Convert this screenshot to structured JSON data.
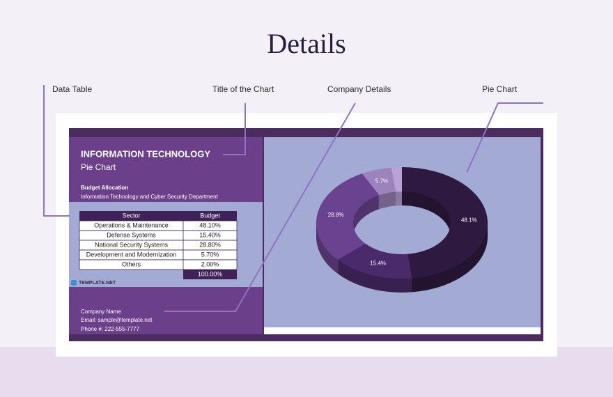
{
  "heading": "Details",
  "callouts": [
    "Data Table",
    "Title of the Chart",
    "Company Details",
    "Pie Chart"
  ],
  "sheet": {
    "title": "INFORMATION TECHNOLOGY",
    "subtitle": "Pie Chart",
    "section": "Budget Allocation",
    "department": "Information Technology and Cyber Security Department",
    "table": {
      "header": [
        "Sector",
        "Budget"
      ],
      "rows": [
        [
          "Operations & Maintenance",
          "48.10%"
        ],
        [
          "Defense Systems",
          "15.40%"
        ],
        [
          "National Security Systems",
          "28.80%"
        ],
        [
          "Development and Modernization",
          "5.70%"
        ],
        [
          "Others",
          "2.00%"
        ]
      ],
      "total": "100.00%"
    },
    "logo": "TEMPLATE.NET",
    "company": [
      "Company Name",
      "Email: sample@template.net",
      "Phone #: 222-555-7777"
    ]
  },
  "chart_data": {
    "type": "donut",
    "values": [
      48.1,
      15.4,
      28.8,
      5.7,
      2.0
    ],
    "value_labels": [
      "48.1%",
      "15.4%",
      "28.8%",
      "5.7%",
      null
    ],
    "colors": [
      "#2e1a40",
      "#4b2a6b",
      "#6a4390",
      "#9c83bb",
      "#b8a2d6"
    ]
  }
}
